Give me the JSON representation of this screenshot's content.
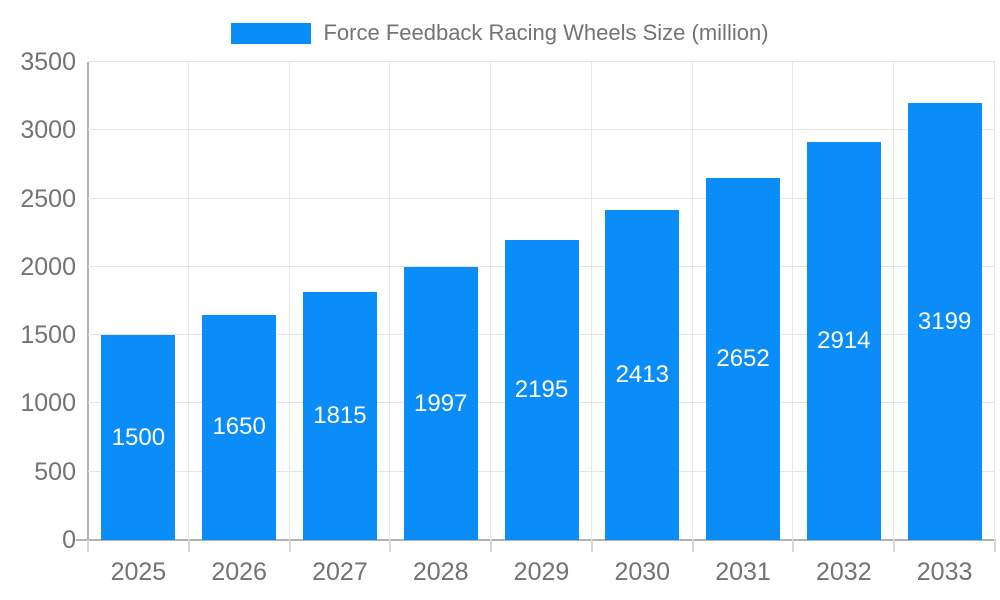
{
  "chart_data": {
    "type": "bar",
    "title": "Force Feedback Racing Wheels Size (million)",
    "legend": [
      "Force Feedback Racing Wheels Size (million)"
    ],
    "legend_position": "top",
    "categories": [
      "2025",
      "2026",
      "2027",
      "2028",
      "2029",
      "2030",
      "2031",
      "2032",
      "2033"
    ],
    "values": [
      1500,
      1650,
      1815,
      1997,
      2195,
      2413,
      2652,
      2914,
      3199
    ],
    "xlabel": "",
    "ylabel": "",
    "ylim": [
      0,
      3500
    ],
    "yticks": [
      0,
      500,
      1000,
      1500,
      2000,
      2500,
      3000,
      3500
    ],
    "grid": true,
    "colors": {
      "bar": "#0A8DF8",
      "value_label": "#ffffff",
      "axis_text": "#737373",
      "legend_text": "#737373",
      "gridline": "#e6e6e6",
      "axis_line": "#b3b3b3",
      "tick": "#d9d9d9"
    }
  }
}
